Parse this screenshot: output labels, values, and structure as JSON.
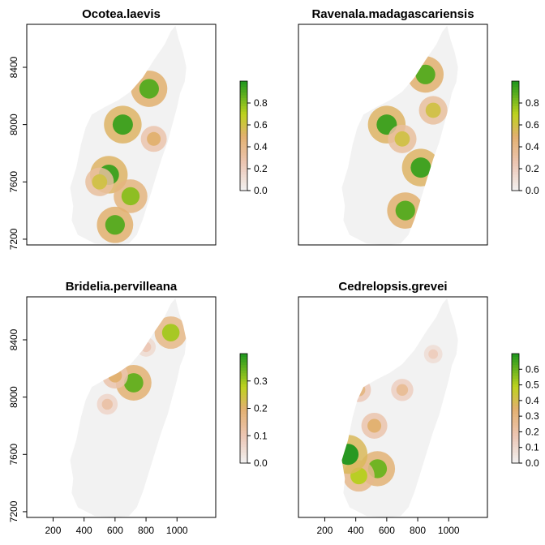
{
  "chart_data": [
    {
      "type": "heatmap",
      "title": "Ocotea.laevis",
      "xlabel": "",
      "ylabel": "",
      "x_ticks": [],
      "y_ticks": [
        8400,
        8000,
        7600,
        7200
      ],
      "legend_ticks": [
        "0.0",
        "0.2",
        "0.4",
        "0.6",
        "0.8"
      ],
      "legend_range": [
        0,
        1.0
      ],
      "hotspots": [
        {
          "x": 650,
          "y": 8000,
          "value": 0.95
        },
        {
          "x": 820,
          "y": 8250,
          "value": 0.9
        },
        {
          "x": 560,
          "y": 7650,
          "value": 0.95
        },
        {
          "x": 700,
          "y": 7500,
          "value": 0.8
        },
        {
          "x": 600,
          "y": 7300,
          "value": 0.9
        },
        {
          "x": 500,
          "y": 7600,
          "value": 0.6
        },
        {
          "x": 850,
          "y": 7900,
          "value": 0.5
        }
      ]
    },
    {
      "type": "heatmap",
      "title": "Ravenala.madagascariensis",
      "xlabel": "",
      "ylabel": "",
      "x_ticks": [],
      "y_ticks": [],
      "legend_ticks": [
        "0.0",
        "0.2",
        "0.4",
        "0.6",
        "0.8"
      ],
      "legend_range": [
        0,
        1.0
      ],
      "hotspots": [
        {
          "x": 600,
          "y": 8000,
          "value": 0.95
        },
        {
          "x": 850,
          "y": 8350,
          "value": 0.9
        },
        {
          "x": 820,
          "y": 7700,
          "value": 0.95
        },
        {
          "x": 720,
          "y": 7400,
          "value": 0.9
        },
        {
          "x": 700,
          "y": 7900,
          "value": 0.6
        },
        {
          "x": 900,
          "y": 8100,
          "value": 0.6
        }
      ]
    },
    {
      "type": "heatmap",
      "title": "Bridelia.pervilleana",
      "xlabel": "",
      "ylabel": "",
      "x_ticks": [
        200,
        400,
        600,
        800,
        1000
      ],
      "y_ticks": [
        8400,
        8000,
        7600,
        7200
      ],
      "legend_ticks": [
        "0.0",
        "0.1",
        "0.2",
        "0.3"
      ],
      "legend_range": [
        0,
        0.4
      ],
      "hotspots": [
        {
          "x": 720,
          "y": 8100,
          "value": 0.35
        },
        {
          "x": 960,
          "y": 8450,
          "value": 0.3
        },
        {
          "x": 600,
          "y": 8150,
          "value": 0.2
        },
        {
          "x": 550,
          "y": 7950,
          "value": 0.12
        },
        {
          "x": 800,
          "y": 8350,
          "value": 0.1
        }
      ]
    },
    {
      "type": "heatmap",
      "title": "Cedrelopsis.grevei",
      "xlabel": "",
      "ylabel": "",
      "x_ticks": [
        200,
        400,
        600,
        800,
        1000
      ],
      "y_ticks": [],
      "legend_ticks": [
        "0.0",
        "0.1",
        "0.2",
        "0.3",
        "0.4",
        "0.5",
        "0.6"
      ],
      "legend_range": [
        0,
        0.7
      ],
      "hotspots": [
        {
          "x": 540,
          "y": 7500,
          "value": 0.6
        },
        {
          "x": 420,
          "y": 7450,
          "value": 0.5
        },
        {
          "x": 350,
          "y": 7600,
          "value": 0.7
        },
        {
          "x": 520,
          "y": 7800,
          "value": 0.35
        },
        {
          "x": 700,
          "y": 8050,
          "value": 0.25
        },
        {
          "x": 900,
          "y": 8300,
          "value": 0.15
        },
        {
          "x": 420,
          "y": 8050,
          "value": 0.3
        }
      ]
    }
  ]
}
